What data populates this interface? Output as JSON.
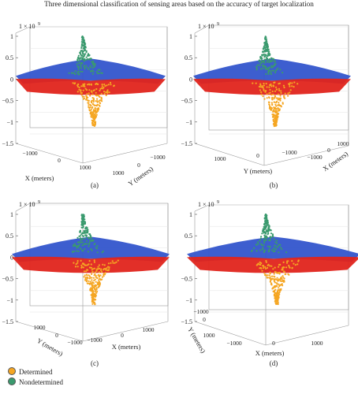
{
  "title": "Three dimensional classification of sensing areas based on the accuracy of target localization",
  "colors": {
    "determined": "#f5a623",
    "nondetermined": "#3a9a6e",
    "red_region": "#e0241c",
    "blue_region": "#3355cc",
    "box": "#999999"
  },
  "legend": {
    "items": [
      {
        "label": "Determined",
        "color": "#f5a623"
      },
      {
        "label": "Nondetermined",
        "color": "#3a9a6e"
      }
    ]
  },
  "chart_data": [
    {
      "type": "scatter",
      "panel": "(a)",
      "z_multiplier": "× 10⁹",
      "z_ticks": [
        "1",
        "0.5",
        "0",
        "−0.5",
        "−1",
        "−1.5"
      ],
      "x_ticks": [
        "−1000",
        "0",
        "1000"
      ],
      "y_ticks": [
        "1000",
        "0",
        "−1000"
      ],
      "x_label": "X (meters)",
      "y_label": "Y (meters)",
      "zlim": [
        -1.5,
        1.0
      ]
    },
    {
      "type": "scatter",
      "panel": "(b)",
      "z_multiplier": "× 10⁹",
      "z_ticks": [
        "1",
        "0.5",
        "0",
        "−0.5",
        "−1",
        "−1.5"
      ],
      "y_ticks": [
        "1000",
        "0",
        "−1000"
      ],
      "x_ticks": [
        "−1000",
        "0",
        "1000"
      ],
      "x_label": "X (meters)",
      "y_label": "Y (meters)",
      "zlim": [
        -1.5,
        1.0
      ]
    },
    {
      "type": "scatter",
      "panel": "(c)",
      "z_multiplier": "× 10⁹",
      "z_ticks": [
        "1",
        "0.5",
        "0",
        "−0.5",
        "−1",
        "−1.5"
      ],
      "y_ticks": [
        "1000",
        "0",
        "−1000"
      ],
      "x_ticks": [
        "−1000",
        "0",
        "1000"
      ],
      "x_label": "X (meters)",
      "y_label": "Y (meters)",
      "zlim": [
        -1.5,
        1.0
      ]
    },
    {
      "type": "scatter",
      "panel": "(d)",
      "z_multiplier": "× 10⁹",
      "z_ticks": [
        "1",
        "0.5",
        "0",
        "−0.5",
        "−1",
        "−1.5"
      ],
      "y_ticks": [
        "1000",
        "0",
        "−1000"
      ],
      "x_ticks": [
        "−1000",
        "0",
        "1000"
      ],
      "x_label": "X (meters)",
      "y_label": "Y (meters)",
      "zlim": [
        -1.5,
        1.0
      ]
    }
  ]
}
